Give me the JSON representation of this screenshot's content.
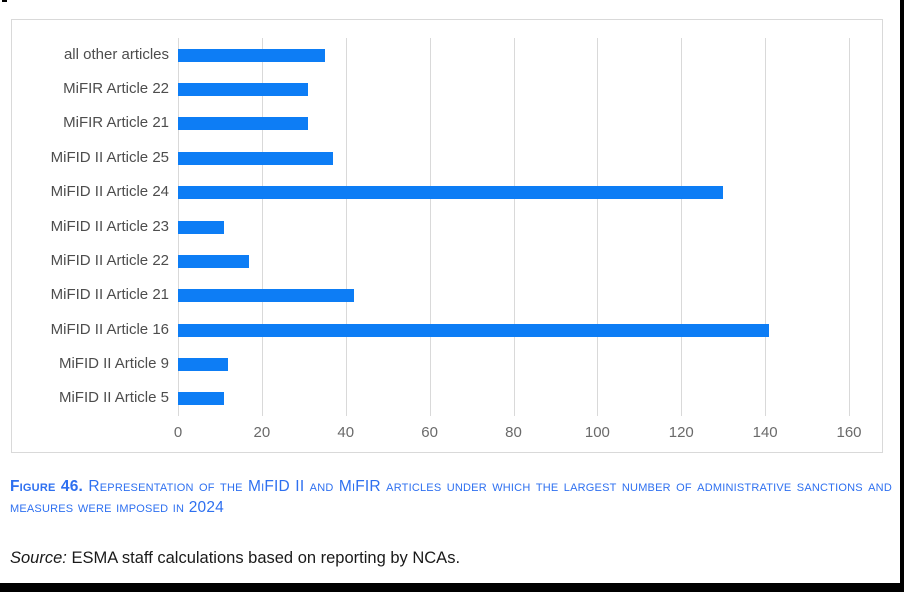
{
  "chart_data": {
    "type": "bar",
    "orientation": "horizontal",
    "categories": [
      "all other articles",
      "MiFIR Article 22",
      "MiFIR Article 21",
      "MiFID II Article 25",
      "MiFID II Article 24",
      "MiFID II Article 23",
      "MiFID II Article 22",
      "MiFID II Article 21",
      "MiFID II Article 16",
      "MiFID II Article 9",
      "MiFID II Article 5"
    ],
    "values": [
      35,
      31,
      31,
      37,
      130,
      11,
      17,
      42,
      141,
      12,
      11
    ],
    "xlim": [
      0,
      160
    ],
    "xticks": [
      0,
      20,
      40,
      60,
      80,
      100,
      120,
      140,
      160
    ],
    "grid": "vertical",
    "legend": "none",
    "bar_color": "#0d7df5",
    "gridline_color": "#d9d9d9",
    "title": "Figure 46. Representation of the MiFID II and MiFIR articles under which the largest number of administrative sanctions and measures were imposed in 2024",
    "xlabel": "",
    "ylabel": ""
  },
  "caption": {
    "label": "Figure 46.",
    "text": " Representation of the MiFID II and MiFIR articles under which the largest number of administrative sanctions and measures were imposed in 2024",
    "color": "#2e70f0"
  },
  "source": {
    "label": "Source:",
    "text": " ESMA staff calculations based on reporting by NCAs."
  }
}
